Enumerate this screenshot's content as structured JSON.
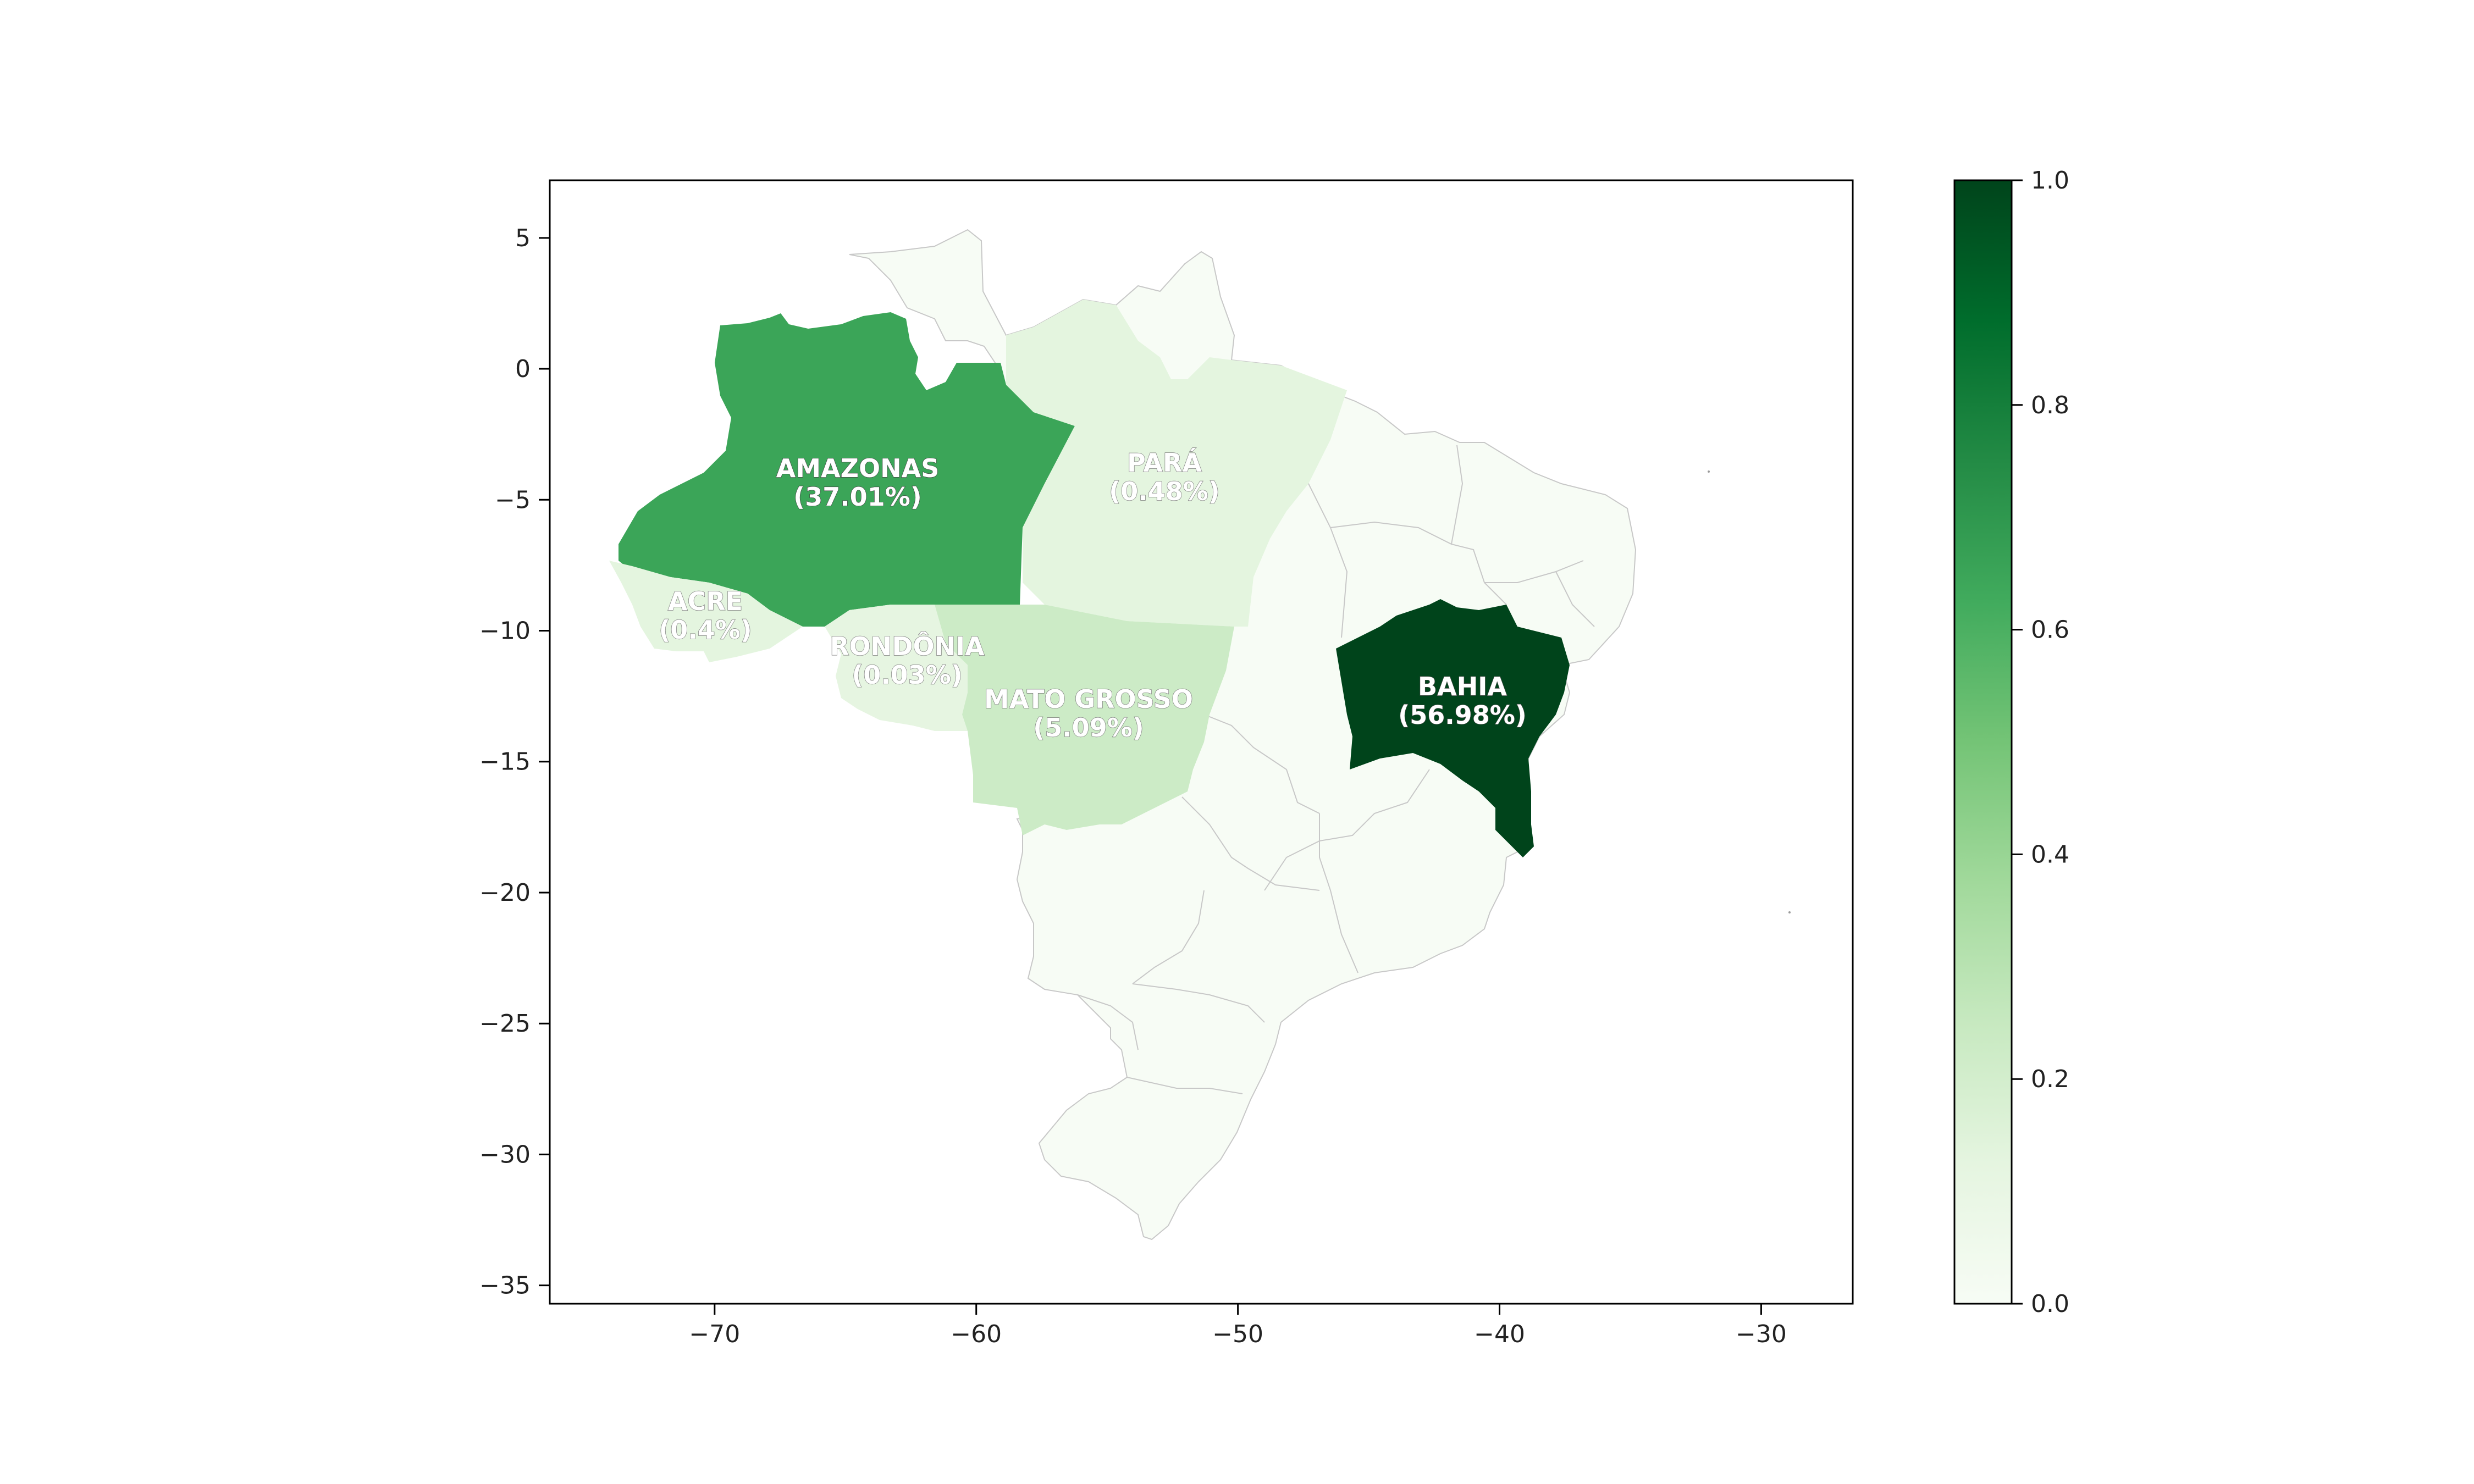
{
  "chart_data": {
    "type": "choropleth",
    "title": "",
    "xlabel": "",
    "ylabel": "",
    "xlim": [
      -76.3,
      -26.5
    ],
    "ylim": [
      -35.7,
      7.2
    ],
    "x_ticks": [
      -70,
      -60,
      -50,
      -40,
      -30
    ],
    "y_ticks": [
      5,
      0,
      -5,
      -10,
      -15,
      -20,
      -25,
      -30,
      -35
    ],
    "x_tick_labels": [
      "−70",
      "−60",
      "−50",
      "−40",
      "−30"
    ],
    "y_tick_labels": [
      "5",
      "0",
      "−5",
      "−10",
      "−15",
      "−20",
      "−25",
      "−30",
      "−35"
    ],
    "colormap": "Greens",
    "color_range": [
      0.0,
      1.0
    ],
    "colorbar_ticks": [
      0.0,
      0.2,
      0.4,
      0.6,
      0.8,
      1.0
    ],
    "colorbar_tick_labels": [
      "0.0",
      "0.2",
      "0.4",
      "0.6",
      "0.8",
      "1.0"
    ],
    "highlighted_states": [
      {
        "name": "AMAZONAS",
        "pct": "(37.01%)",
        "value": 0.6496
      },
      {
        "name": "PARÁ",
        "pct": "(0.48%)",
        "value": 0.0084
      },
      {
        "name": "ACRE",
        "pct": "(0.4%)",
        "value": 0.007
      },
      {
        "name": "RONDÔNIA",
        "pct": "(0.03%)",
        "value": 0.0005
      },
      {
        "name": "MATO GROSSO",
        "pct": "(5.09%)",
        "value": 0.0893
      },
      {
        "name": "BAHIA",
        "pct": "(56.98%)",
        "value": 1.0
      }
    ],
    "colors": {
      "background_state": "#f7fcf5",
      "border": "#c8c8c8",
      "axis": "#000000"
    }
  }
}
